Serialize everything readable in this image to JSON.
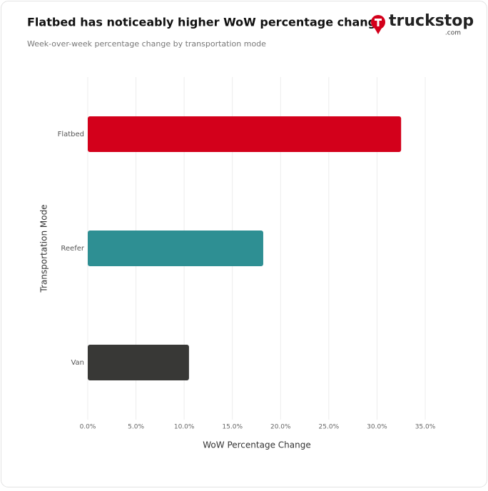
{
  "chart_data": {
    "type": "hbar",
    "title": "Flatbed has noticeably higher WoW percentage change",
    "subtitle": "Week-over-week percentage change by transportation mode",
    "brand": "truckstop",
    "brand_suffix": ".com",
    "x_label": "WoW Percentage Change",
    "y_label": "Transportation Mode",
    "categories": [
      "Flatbed",
      "Reefer",
      "Van"
    ],
    "values": [
      32.5,
      18.2,
      10.5
    ],
    "colors": [
      "#d3001b",
      "#2e8f93",
      "#383836"
    ],
    "xlim": [
      0,
      35
    ],
    "xticks": [
      {
        "value": 0,
        "label": "0.0%"
      },
      {
        "value": 5,
        "label": "5.0%"
      },
      {
        "value": 10,
        "label": "10.0%"
      },
      {
        "value": 15,
        "label": "15.0%"
      },
      {
        "value": 20,
        "label": "20.0%"
      },
      {
        "value": 25,
        "label": "25.0%"
      },
      {
        "value": 30,
        "label": "30.0%"
      },
      {
        "value": 35,
        "label": "35.0%"
      }
    ],
    "grid": true
  }
}
